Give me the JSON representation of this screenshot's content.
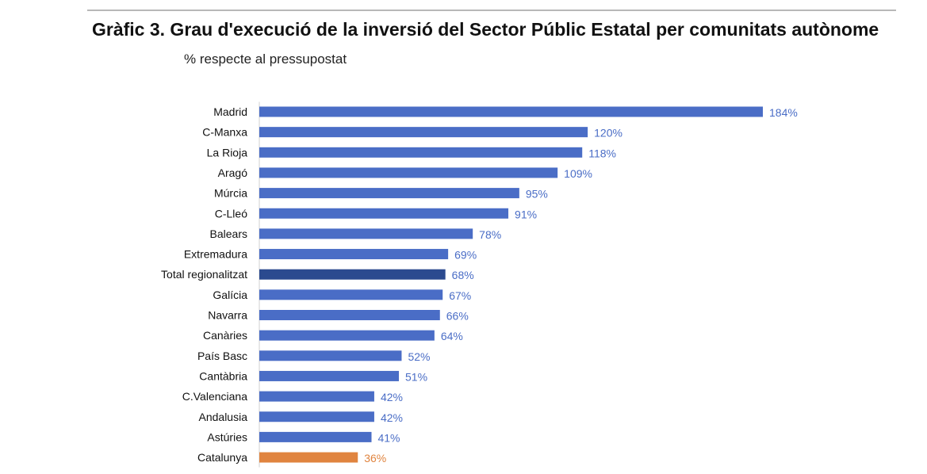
{
  "chart_data": {
    "type": "bar",
    "orientation": "horizontal",
    "title": "Gràfic 3. Grau d'execució de la inversió del Sector Públic Estatal per comunitats autònome",
    "subtitle": "% respecte al pressupostat",
    "categories": [
      "Madrid",
      "C-Manxa",
      "La Rioja",
      "Aragó",
      "Múrcia",
      "C-Lleó",
      "Balears",
      "Extremadura",
      "Total regionalitzat",
      "Galícia",
      "Navarra",
      "Canàries",
      "País Basc",
      "Cantàbria",
      "C.Valenciana",
      "Andalusia",
      "Astúries",
      "Catalunya"
    ],
    "values": [
      184,
      120,
      118,
      109,
      95,
      91,
      78,
      69,
      68,
      67,
      66,
      64,
      52,
      51,
      42,
      42,
      41,
      36
    ],
    "value_labels": [
      "184%",
      "120%",
      "118%",
      "109%",
      "95%",
      "91%",
      "78%",
      "69%",
      "68%",
      "67%",
      "66%",
      "64%",
      "52%",
      "51%",
      "42%",
      "42%",
      "41%",
      "36%"
    ],
    "unit": "%",
    "xlim": [
      0,
      184
    ],
    "grid": false,
    "legend": "none",
    "colors": {
      "default": "#4a6dc6",
      "Total regionalitzat": "#2b4a8f",
      "Catalunya": "#e0843f",
      "label_default": "#4a6dc6",
      "label_highlight": "#e0843f"
    }
  }
}
